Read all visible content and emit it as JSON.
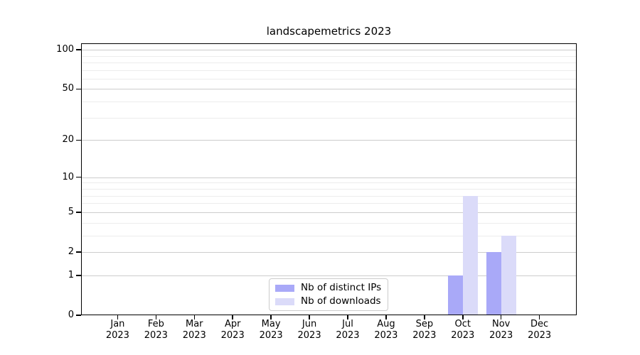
{
  "chart_data": {
    "type": "bar",
    "title": "landscapemetrics 2023",
    "x": [
      "Jan",
      "Feb",
      "Mar",
      "Apr",
      "May",
      "Jun",
      "Jul",
      "Aug",
      "Sep",
      "Oct",
      "Nov",
      "Dec"
    ],
    "x_year": "2023",
    "series": [
      {
        "name": "Nb of distinct IPs",
        "color": "#a9a9f8",
        "values": [
          0,
          0,
          0,
          0,
          0,
          0,
          0,
          0,
          0,
          1,
          2,
          0
        ]
      },
      {
        "name": "Nb of downloads",
        "color": "#dbdbf9",
        "values": [
          0,
          0,
          0,
          0,
          0,
          0,
          0,
          0,
          0,
          7,
          3,
          0
        ]
      }
    ],
    "yscale": "log1p",
    "ylim": [
      0,
      112
    ],
    "yticks": [
      0,
      1,
      2,
      5,
      10,
      20,
      50,
      100
    ],
    "yticks_minor": [
      3,
      4,
      6,
      7,
      8,
      9,
      30,
      40,
      60,
      70,
      80,
      90
    ],
    "grid": "horizontal",
    "legend_position": "lower center"
  },
  "colors": {
    "background": "#ffffff",
    "spine": "#000000",
    "text": "#000000",
    "major_grid": "#cccccc",
    "minor_grid": "#ececec",
    "legend_border": "#cccccc"
  }
}
